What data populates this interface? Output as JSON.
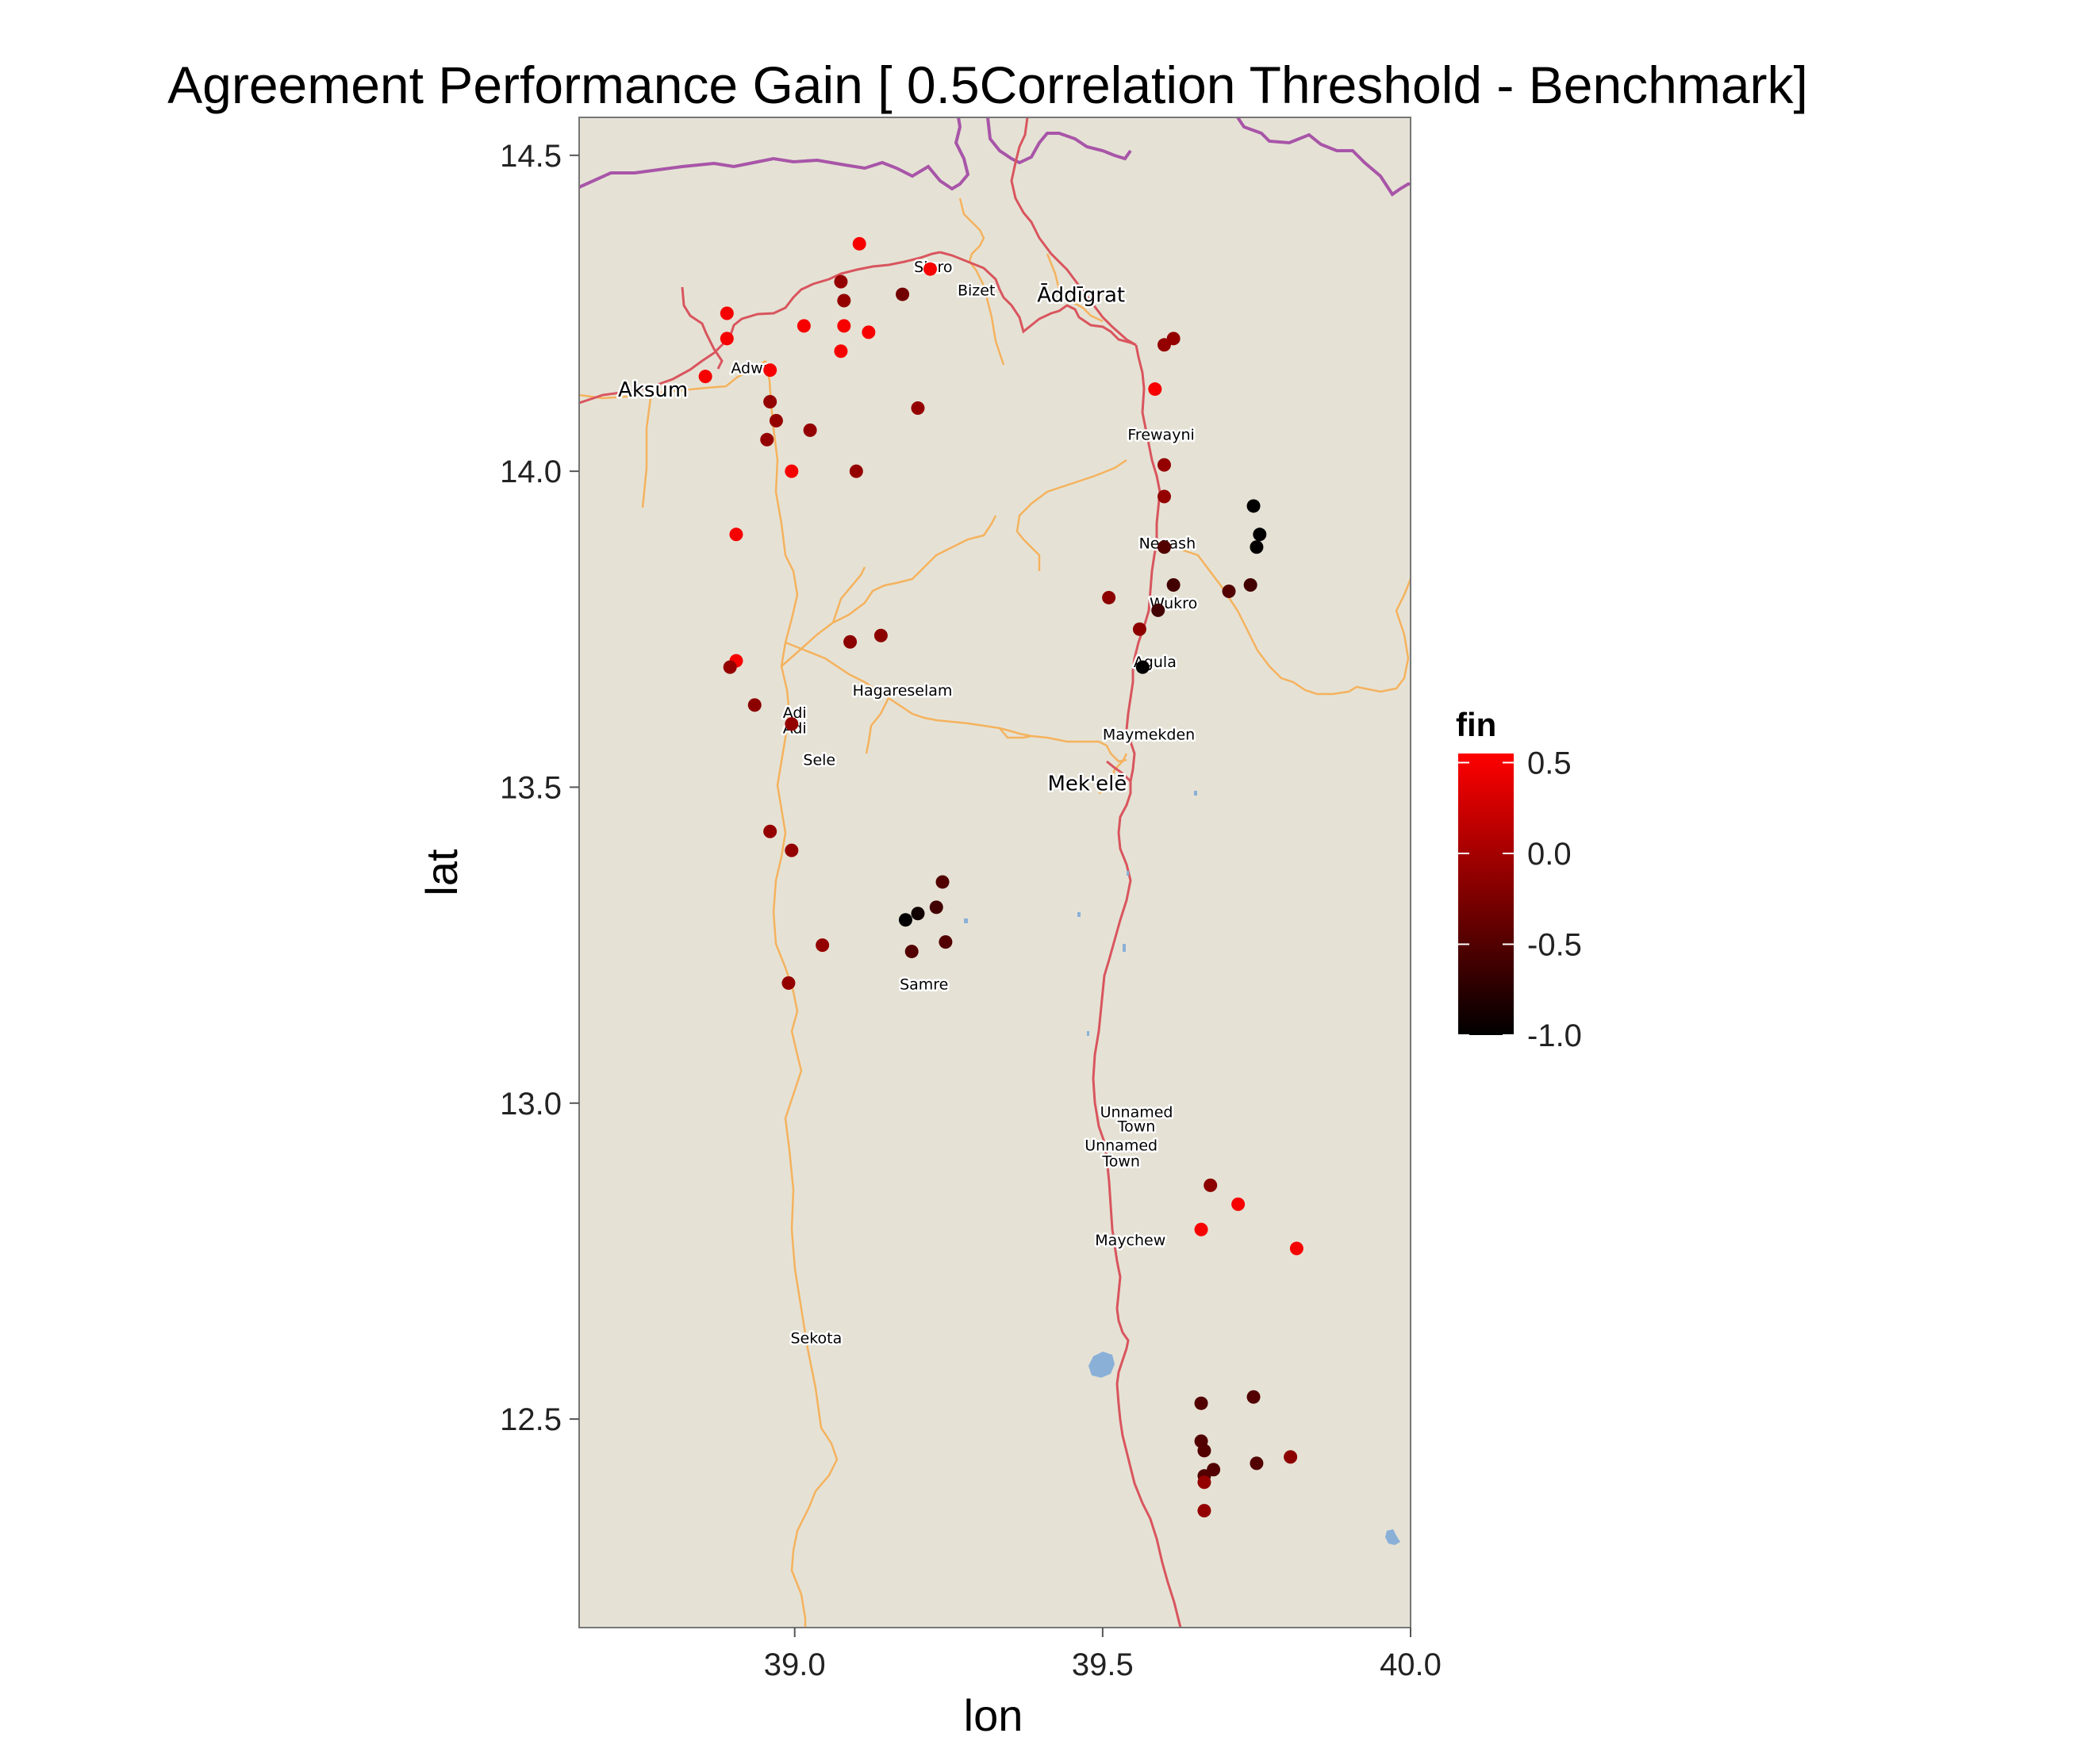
{
  "title": "Agreement Performance Gain [ 0.5Correlation Threshold - Benchmark]",
  "colors": {
    "panel": "#e5e2d5",
    "border_line": "#a855a8",
    "road_primary": "#d9555e",
    "road_secondary": "#f5b25e",
    "water": "#8ab0d8",
    "low": "#000000",
    "high": "#ff0000"
  },
  "x_axis": {
    "label": "lon",
    "ticks": [
      "39.0",
      "39.5",
      "40.0"
    ]
  },
  "y_axis": {
    "label": "lat",
    "ticks": [
      "14.5",
      "14.0",
      "13.5",
      "13.0",
      "12.5"
    ]
  },
  "legend": {
    "title": "fin",
    "labels": [
      "0.5",
      "0.0",
      "-0.5",
      "-1.0"
    ]
  },
  "places": [
    {
      "name": "Aksum",
      "lon": 38.77,
      "lat": 14.118,
      "size": "big"
    },
    {
      "name": "Adwa",
      "lon": 38.93,
      "lat": 14.155,
      "size": "small"
    },
    {
      "name": "Sinro",
      "lon": 39.225,
      "lat": 14.315,
      "size": "small"
    },
    {
      "name": "Bizet",
      "lon": 39.295,
      "lat": 14.278,
      "size": "small"
    },
    {
      "name": "Āddīgrat",
      "lon": 39.465,
      "lat": 14.268,
      "size": "big"
    },
    {
      "name": "Frewayni",
      "lon": 39.595,
      "lat": 14.05,
      "size": "small"
    },
    {
      "name": "Negash",
      "lon": 39.605,
      "lat": 13.878,
      "size": "small"
    },
    {
      "name": "Wukro",
      "lon": 39.615,
      "lat": 13.783,
      "size": "small"
    },
    {
      "name": "Agula",
      "lon": 39.585,
      "lat": 13.69,
      "size": "small"
    },
    {
      "name": "Hagareselam",
      "lon": 39.175,
      "lat": 13.645,
      "size": "small"
    },
    {
      "name": "Adi",
      "lon": 39.0,
      "lat": 13.61,
      "size": "small"
    },
    {
      "name": "Adi",
      "lon": 39.0,
      "lat": 13.585,
      "size": "small"
    },
    {
      "name": "Sele",
      "lon": 39.04,
      "lat": 13.535,
      "size": "small"
    },
    {
      "name": "Maymekden",
      "lon": 39.575,
      "lat": 13.575,
      "size": "small"
    },
    {
      "name": "Mek'elē",
      "lon": 39.475,
      "lat": 13.495,
      "size": "big"
    },
    {
      "name": "Samre",
      "lon": 39.21,
      "lat": 13.18,
      "size": "small"
    },
    {
      "name": "Unnamed",
      "lon": 39.555,
      "lat": 12.978,
      "size": "small"
    },
    {
      "name": "Town",
      "lon": 39.555,
      "lat": 12.955,
      "size": "small"
    },
    {
      "name": "Unnamed",
      "lon": 39.53,
      "lat": 12.925,
      "size": "small"
    },
    {
      "name": "Town",
      "lon": 39.53,
      "lat": 12.9,
      "size": "small"
    },
    {
      "name": "Maychew",
      "lon": 39.545,
      "lat": 12.775,
      "size": "small"
    },
    {
      "name": "Sekota",
      "lon": 39.035,
      "lat": 12.62,
      "size": "small"
    }
  ],
  "chart_data": {
    "type": "scatter",
    "title": "Agreement Performance Gain [ 0.5Correlation Threshold - Benchmark]",
    "xlabel": "lon",
    "ylabel": "lat",
    "xlim": [
      38.65,
      40.0
    ],
    "ylim": [
      12.17,
      14.56
    ],
    "color_label": "fin",
    "color_range": [
      -1.0,
      0.55
    ],
    "points": [
      {
        "lon": 39.105,
        "lat": 14.36,
        "fin": 0.5
      },
      {
        "lon": 39.22,
        "lat": 14.32,
        "fin": 0.5
      },
      {
        "lon": 39.075,
        "lat": 14.3,
        "fin": -0.1
      },
      {
        "lon": 39.175,
        "lat": 14.28,
        "fin": -0.3
      },
      {
        "lon": 39.08,
        "lat": 14.27,
        "fin": -0.1
      },
      {
        "lon": 38.89,
        "lat": 14.25,
        "fin": 0.5
      },
      {
        "lon": 39.015,
        "lat": 14.23,
        "fin": 0.5
      },
      {
        "lon": 39.08,
        "lat": 14.23,
        "fin": 0.5
      },
      {
        "lon": 39.12,
        "lat": 14.22,
        "fin": 0.5
      },
      {
        "lon": 38.89,
        "lat": 14.21,
        "fin": 0.5
      },
      {
        "lon": 39.075,
        "lat": 14.19,
        "fin": 0.5
      },
      {
        "lon": 38.96,
        "lat": 14.16,
        "fin": 0.5
      },
      {
        "lon": 38.855,
        "lat": 14.15,
        "fin": 0.5
      },
      {
        "lon": 38.96,
        "lat": 14.11,
        "fin": -0.1
      },
      {
        "lon": 39.2,
        "lat": 14.1,
        "fin": -0.1
      },
      {
        "lon": 38.97,
        "lat": 14.08,
        "fin": -0.1
      },
      {
        "lon": 39.025,
        "lat": 14.065,
        "fin": -0.1
      },
      {
        "lon": 38.955,
        "lat": 14.05,
        "fin": -0.1
      },
      {
        "lon": 38.995,
        "lat": 14.0,
        "fin": 0.5
      },
      {
        "lon": 39.1,
        "lat": 14.0,
        "fin": -0.1
      },
      {
        "lon": 38.905,
        "lat": 13.9,
        "fin": 0.5
      },
      {
        "lon": 39.14,
        "lat": 13.74,
        "fin": -0.15
      },
      {
        "lon": 39.09,
        "lat": 13.73,
        "fin": -0.15
      },
      {
        "lon": 38.905,
        "lat": 13.7,
        "fin": 0.5
      },
      {
        "lon": 38.895,
        "lat": 13.69,
        "fin": -0.1
      },
      {
        "lon": 38.935,
        "lat": 13.63,
        "fin": -0.15
      },
      {
        "lon": 38.995,
        "lat": 13.6,
        "fin": -0.1
      },
      {
        "lon": 38.96,
        "lat": 13.43,
        "fin": -0.1
      },
      {
        "lon": 38.995,
        "lat": 13.4,
        "fin": -0.1
      },
      {
        "lon": 39.24,
        "lat": 13.35,
        "fin": -0.5
      },
      {
        "lon": 39.23,
        "lat": 13.31,
        "fin": -0.6
      },
      {
        "lon": 39.2,
        "lat": 13.3,
        "fin": -0.9
      },
      {
        "lon": 39.18,
        "lat": 13.29,
        "fin": -1.0
      },
      {
        "lon": 39.045,
        "lat": 13.25,
        "fin": -0.1
      },
      {
        "lon": 39.245,
        "lat": 13.255,
        "fin": -0.5
      },
      {
        "lon": 39.19,
        "lat": 13.24,
        "fin": -0.5
      },
      {
        "lon": 38.99,
        "lat": 13.19,
        "fin": -0.1
      },
      {
        "lon": 39.615,
        "lat": 14.21,
        "fin": -0.1
      },
      {
        "lon": 39.6,
        "lat": 14.2,
        "fin": -0.1
      },
      {
        "lon": 39.585,
        "lat": 14.13,
        "fin": 0.5
      },
      {
        "lon": 39.6,
        "lat": 14.01,
        "fin": -0.1
      },
      {
        "lon": 39.6,
        "lat": 13.96,
        "fin": -0.1
      },
      {
        "lon": 39.745,
        "lat": 13.945,
        "fin": -1.0
      },
      {
        "lon": 39.755,
        "lat": 13.9,
        "fin": -1.0
      },
      {
        "lon": 39.75,
        "lat": 13.88,
        "fin": -1.0
      },
      {
        "lon": 39.6,
        "lat": 13.88,
        "fin": -0.5
      },
      {
        "lon": 39.615,
        "lat": 13.82,
        "fin": -0.6
      },
      {
        "lon": 39.74,
        "lat": 13.82,
        "fin": -0.6
      },
      {
        "lon": 39.705,
        "lat": 13.81,
        "fin": -0.5
      },
      {
        "lon": 39.51,
        "lat": 13.8,
        "fin": -0.15
      },
      {
        "lon": 39.59,
        "lat": 13.78,
        "fin": -0.6
      },
      {
        "lon": 39.56,
        "lat": 13.75,
        "fin": -0.15
      },
      {
        "lon": 39.565,
        "lat": 13.69,
        "fin": -1.0
      },
      {
        "lon": 39.675,
        "lat": 12.87,
        "fin": -0.15
      },
      {
        "lon": 39.72,
        "lat": 12.84,
        "fin": 0.5
      },
      {
        "lon": 39.66,
        "lat": 12.8,
        "fin": 0.5
      },
      {
        "lon": 39.815,
        "lat": 12.77,
        "fin": 0.5
      },
      {
        "lon": 39.745,
        "lat": 12.535,
        "fin": -0.5
      },
      {
        "lon": 39.66,
        "lat": 12.525,
        "fin": -0.5
      },
      {
        "lon": 39.66,
        "lat": 12.465,
        "fin": -0.5
      },
      {
        "lon": 39.665,
        "lat": 12.45,
        "fin": -0.5
      },
      {
        "lon": 39.805,
        "lat": 12.44,
        "fin": -0.15
      },
      {
        "lon": 39.75,
        "lat": 12.43,
        "fin": -0.5
      },
      {
        "lon": 39.68,
        "lat": 12.42,
        "fin": -0.5
      },
      {
        "lon": 39.665,
        "lat": 12.41,
        "fin": -0.5
      },
      {
        "lon": 39.665,
        "lat": 12.4,
        "fin": -0.1
      },
      {
        "lon": 39.665,
        "lat": 12.355,
        "fin": -0.1
      }
    ]
  }
}
